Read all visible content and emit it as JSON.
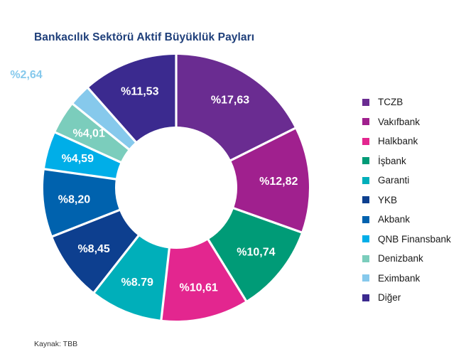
{
  "chart_data": {
    "type": "pie",
    "title": "Bankacılık Sektörü Aktif Büyüklük Payları",
    "categories": [
      "TCZB",
      "Vakıfbank",
      "Halkbank",
      "İşbank",
      "Garanti",
      "YKB",
      "Akbank",
      "QNB Finansbank",
      "Denizbank",
      "Eximbank",
      "Diğer"
    ],
    "values": [
      17.63,
      12.82,
      10.61,
      10.74,
      8.79,
      8.45,
      8.2,
      4.59,
      4.01,
      2.64,
      11.53
    ],
    "labels": [
      "%17,63",
      "%12,82",
      "%10,74",
      "%10,61",
      "%8.79",
      "%8,45",
      "%8,20",
      "%4,59",
      "%4,01",
      "%2,64",
      "%11,53"
    ],
    "slice_order": [
      "TCZB",
      "Vakıfbank",
      "İşbank",
      "Halkbank",
      "Garanti",
      "YKB",
      "Akbank",
      "QNB Finansbank",
      "Denizbank",
      "Eximbank",
      "Diğer"
    ],
    "slice_values": [
      17.63,
      12.82,
      10.74,
      10.61,
      8.79,
      8.45,
      8.2,
      4.59,
      4.01,
      2.64,
      11.53
    ],
    "colors": [
      "#6a2c91",
      "#a0208e",
      "#e3268f",
      "#009b77",
      "#00afba",
      "#0d3f8f",
      "#0062ae",
      "#00aee8",
      "#7bcdbc",
      "#86c9ec",
      "#3b2a8f"
    ],
    "legend_position": "right",
    "donut": true
  },
  "source": "Kaynak: TBB"
}
